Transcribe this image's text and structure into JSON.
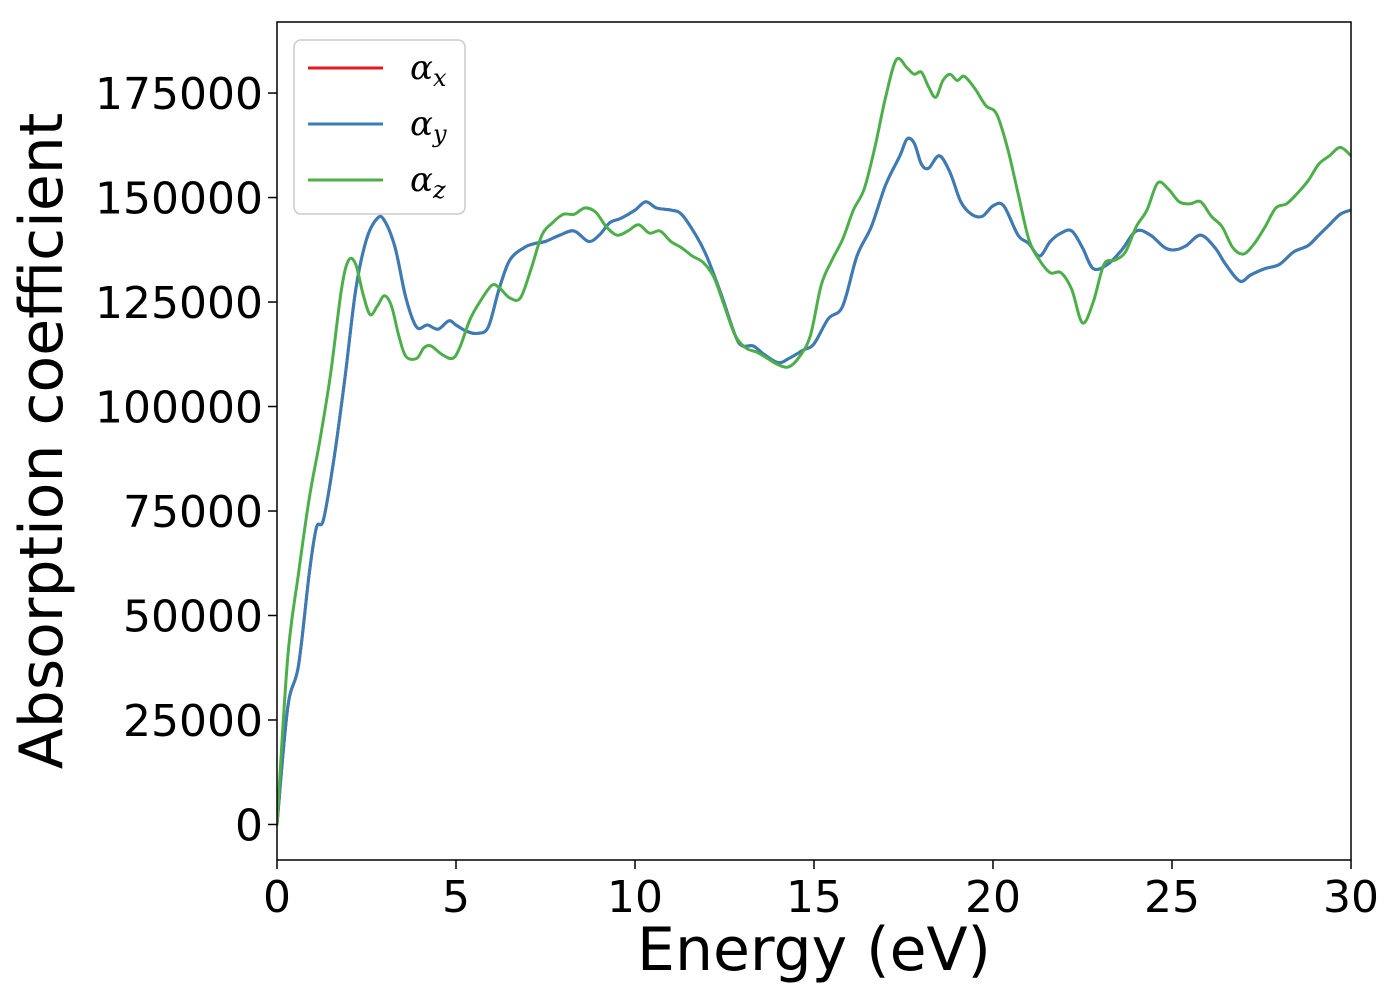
{
  "chart_data": {
    "type": "line",
    "xlabel": "Energy (eV)",
    "ylabel": "Absorption coefficient",
    "xlim": [
      0,
      30
    ],
    "ylim": [
      -8500,
      192000
    ],
    "xticks": [
      0,
      5,
      10,
      15,
      20,
      25,
      30
    ],
    "yticks": [
      0,
      25000,
      50000,
      75000,
      100000,
      125000,
      150000,
      175000
    ],
    "grid": false,
    "legend_position": "top-left",
    "series": [
      {
        "name": "α_x",
        "symbol": "α",
        "subscript": "x",
        "color": "#e41a1c",
        "x": [
          0,
          0.3,
          0.6,
          0.9,
          1.1,
          1.3,
          1.6,
          1.9,
          2.2,
          2.5,
          2.8,
          3.0,
          3.3,
          3.6,
          3.9,
          4.2,
          4.5,
          4.8,
          5.0,
          5.3,
          5.6,
          5.9,
          6.2,
          6.5,
          6.9,
          7.2,
          7.5,
          7.9,
          8.3,
          8.7,
          9.0,
          9.3,
          9.6,
          10.0,
          10.3,
          10.6,
          11.0,
          11.3,
          11.7,
          12.0,
          12.4,
          12.8,
          13.0,
          13.3,
          13.6,
          14.0,
          14.3,
          14.7,
          15.0,
          15.4,
          15.8,
          16.2,
          16.6,
          17.0,
          17.4,
          17.6,
          17.8,
          18.0,
          18.2,
          18.5,
          18.8,
          19.1,
          19.4,
          19.7,
          20.0,
          20.3,
          20.7,
          21.0,
          21.3,
          21.6,
          21.9,
          22.2,
          22.5,
          22.8,
          23.2,
          23.6,
          24.0,
          24.4,
          24.8,
          25.1,
          25.4,
          25.8,
          26.2,
          26.5,
          26.9,
          27.2,
          27.6,
          28.0,
          28.4,
          28.8,
          29.1,
          29.4,
          29.7,
          30.0
        ],
        "values": [
          0,
          28000,
          38000,
          60000,
          71000,
          73000,
          88000,
          107000,
          128000,
          140000,
          145000,
          144500,
          138000,
          126000,
          119000,
          119500,
          118500,
          120500,
          119500,
          118000,
          117500,
          119000,
          128000,
          135000,
          138000,
          139000,
          139500,
          141000,
          142000,
          139500,
          141000,
          144000,
          145000,
          147000,
          149000,
          147500,
          147000,
          146000,
          141000,
          136000,
          127000,
          117000,
          114500,
          114500,
          112500,
          110500,
          111500,
          113500,
          115000,
          121000,
          124000,
          136000,
          143000,
          153000,
          160000,
          164000,
          163000,
          158000,
          157000,
          160000,
          156000,
          149000,
          146000,
          145500,
          148000,
          148000,
          141000,
          139000,
          136000,
          139500,
          141500,
          142000,
          138000,
          133000,
          134000,
          137500,
          142000,
          141000,
          138000,
          137500,
          138500,
          141000,
          138000,
          134000,
          130000,
          131500,
          133000,
          134000,
          137000,
          138500,
          141000,
          143500,
          146000,
          147000
        ]
      },
      {
        "name": "α_y",
        "symbol": "α",
        "subscript": "y",
        "color": "#377eb8",
        "x": [
          0,
          0.3,
          0.6,
          0.9,
          1.1,
          1.3,
          1.6,
          1.9,
          2.2,
          2.5,
          2.8,
          3.0,
          3.3,
          3.6,
          3.9,
          4.2,
          4.5,
          4.8,
          5.0,
          5.3,
          5.6,
          5.9,
          6.2,
          6.5,
          6.9,
          7.2,
          7.5,
          7.9,
          8.3,
          8.7,
          9.0,
          9.3,
          9.6,
          10.0,
          10.3,
          10.6,
          11.0,
          11.3,
          11.7,
          12.0,
          12.4,
          12.8,
          13.0,
          13.3,
          13.6,
          14.0,
          14.3,
          14.7,
          15.0,
          15.4,
          15.8,
          16.2,
          16.6,
          17.0,
          17.4,
          17.6,
          17.8,
          18.0,
          18.2,
          18.5,
          18.8,
          19.1,
          19.4,
          19.7,
          20.0,
          20.3,
          20.7,
          21.0,
          21.3,
          21.6,
          21.9,
          22.2,
          22.5,
          22.8,
          23.2,
          23.6,
          24.0,
          24.4,
          24.8,
          25.1,
          25.4,
          25.8,
          26.2,
          26.5,
          26.9,
          27.2,
          27.6,
          28.0,
          28.4,
          28.8,
          29.1,
          29.4,
          29.7,
          30.0
        ],
        "values": [
          0,
          28000,
          38000,
          60000,
          71000,
          73000,
          88000,
          107000,
          128000,
          140000,
          145000,
          144500,
          138000,
          126000,
          119000,
          119500,
          118500,
          120500,
          119500,
          118000,
          117500,
          119000,
          128000,
          135000,
          138000,
          139000,
          139500,
          141000,
          142000,
          139500,
          141000,
          144000,
          145000,
          147000,
          149000,
          147500,
          147000,
          146000,
          141000,
          136000,
          127000,
          117000,
          114500,
          114500,
          112500,
          110500,
          111500,
          113500,
          115000,
          121000,
          124000,
          136000,
          143000,
          153000,
          160000,
          164000,
          163000,
          158000,
          157000,
          160000,
          156000,
          149000,
          146000,
          145500,
          148000,
          148000,
          141000,
          139000,
          136000,
          139500,
          141500,
          142000,
          138000,
          133000,
          134000,
          137500,
          142000,
          141000,
          138000,
          137500,
          138500,
          141000,
          138000,
          134000,
          130000,
          131500,
          133000,
          134000,
          137000,
          138500,
          141000,
          143500,
          146000,
          147000
        ]
      },
      {
        "name": "α_z",
        "symbol": "α",
        "subscript": "z",
        "color": "#4daf4a",
        "x": [
          0,
          0.3,
          0.6,
          0.9,
          1.2,
          1.5,
          1.8,
          2.0,
          2.2,
          2.4,
          2.6,
          2.8,
          3.0,
          3.2,
          3.4,
          3.6,
          3.9,
          4.1,
          4.3,
          4.6,
          4.9,
          5.1,
          5.4,
          5.7,
          6.0,
          6.2,
          6.5,
          6.8,
          7.1,
          7.4,
          7.7,
          8.0,
          8.3,
          8.6,
          8.9,
          9.2,
          9.5,
          9.8,
          10.1,
          10.4,
          10.7,
          11.0,
          11.3,
          11.6,
          11.9,
          12.2,
          12.5,
          12.8,
          13.1,
          13.4,
          13.7,
          14.0,
          14.3,
          14.6,
          14.9,
          15.2,
          15.5,
          15.8,
          16.1,
          16.4,
          16.7,
          17.0,
          17.3,
          17.6,
          17.8,
          18.0,
          18.2,
          18.4,
          18.6,
          18.8,
          19.0,
          19.2,
          19.5,
          19.8,
          20.1,
          20.4,
          20.7,
          21.0,
          21.3,
          21.6,
          21.9,
          22.2,
          22.5,
          22.8,
          23.1,
          23.4,
          23.7,
          24.0,
          24.3,
          24.6,
          24.9,
          25.2,
          25.5,
          25.8,
          26.1,
          26.4,
          26.7,
          27.0,
          27.3,
          27.6,
          27.9,
          28.2,
          28.5,
          28.8,
          29.1,
          29.4,
          29.7,
          30.0
        ],
        "values": [
          0,
          40000,
          60000,
          78000,
          92000,
          108000,
          128000,
          135000,
          134000,
          127000,
          122000,
          124000,
          126500,
          124000,
          117000,
          112000,
          111500,
          114000,
          114500,
          112500,
          111500,
          114000,
          121000,
          125500,
          129000,
          128500,
          126000,
          126000,
          133000,
          141000,
          144000,
          146000,
          146000,
          147500,
          146500,
          143000,
          141000,
          142000,
          143500,
          141500,
          142000,
          139500,
          138000,
          136000,
          134500,
          131000,
          124000,
          117000,
          114000,
          113000,
          111500,
          110000,
          109500,
          112000,
          117000,
          129000,
          135000,
          140000,
          147000,
          152000,
          162000,
          174000,
          183000,
          181000,
          179500,
          180000,
          176500,
          174000,
          178000,
          179500,
          178000,
          179000,
          176000,
          172000,
          170000,
          162000,
          151000,
          140000,
          135000,
          132000,
          132000,
          128000,
          120000,
          125000,
          134000,
          135000,
          137000,
          143000,
          147000,
          153500,
          152000,
          149000,
          148500,
          149000,
          145500,
          143000,
          138000,
          136500,
          139000,
          143000,
          147500,
          148500,
          151000,
          154000,
          158000,
          160000,
          162000,
          160000
        ]
      }
    ]
  }
}
